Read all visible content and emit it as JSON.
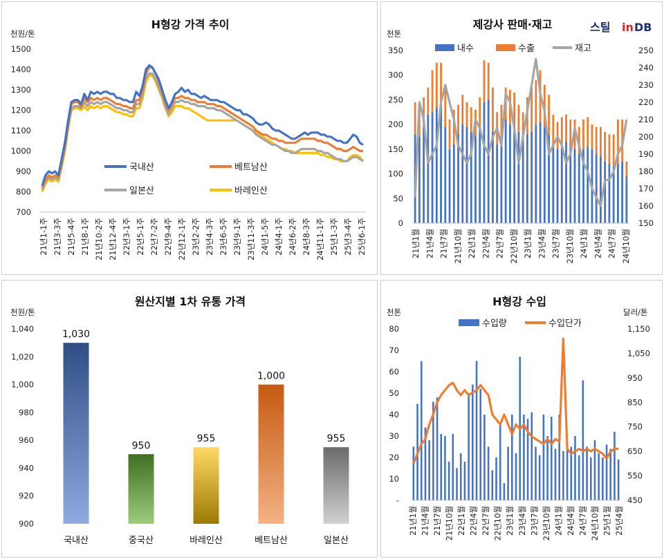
{
  "logo": {
    "part1": "스틸",
    "part2": "in",
    "part3": "DB"
  },
  "chart_data": [
    {
      "id": "h_price_trend",
      "type": "line",
      "title": "H형강 가격 추이",
      "ylabel": "천원/톤",
      "ylim": [
        700,
        1500
      ],
      "yticks": [
        700,
        800,
        900,
        1000,
        1100,
        1200,
        1300,
        1400,
        1500
      ],
      "x_tick_labels": [
        "21년1-1주",
        "21년3-3주",
        "21년5-4주",
        "21년8-1주",
        "21년10-2주",
        "21년12-4주",
        "22년3-1주",
        "22년5-1주",
        "22년7-2주",
        "22년9-4주",
        "22년12-1주",
        "23년2-2주",
        "23년4-3주",
        "23년6-5주",
        "23년9-1주",
        "23년11-3주",
        "24년1-5주",
        "24년4-1주",
        "24년6-2주",
        "24년8-3주",
        "24년11-1주",
        "25년1-3주",
        "25년3-4주",
        "25년6-1주"
      ],
      "legend_position": "center",
      "series": [
        {
          "name": "국내산",
          "color": "#4472c4",
          "values": [
            830,
            880,
            900,
            890,
            900,
            880,
            960,
            1040,
            1150,
            1240,
            1250,
            1250,
            1230,
            1280,
            1250,
            1290,
            1280,
            1290,
            1280,
            1290,
            1290,
            1280,
            1280,
            1260,
            1260,
            1250,
            1250,
            1240,
            1240,
            1290,
            1270,
            1320,
            1400,
            1420,
            1410,
            1380,
            1350,
            1300,
            1250,
            1210,
            1240,
            1280,
            1290,
            1310,
            1290,
            1300,
            1280,
            1280,
            1270,
            1260,
            1270,
            1260,
            1250,
            1250,
            1250,
            1240,
            1240,
            1230,
            1220,
            1210,
            1200,
            1200,
            1180,
            1180,
            1170,
            1160,
            1140,
            1130,
            1130,
            1140,
            1130,
            1110,
            1100,
            1100,
            1090,
            1080,
            1070,
            1060,
            1060,
            1070,
            1080,
            1090,
            1080,
            1090,
            1090,
            1090,
            1080,
            1080,
            1070,
            1070,
            1060,
            1050,
            1050,
            1040,
            1040,
            1060,
            1080,
            1070,
            1040,
            1030
          ]
        },
        {
          "name": "베트남산",
          "color": "#ed7d31",
          "values": [
            820,
            860,
            880,
            870,
            880,
            870,
            940,
            1020,
            1130,
            1230,
            1240,
            1240,
            1220,
            1260,
            1240,
            1260,
            1250,
            1260,
            1250,
            1260,
            1260,
            1250,
            1240,
            1230,
            1230,
            1220,
            1220,
            1210,
            1210,
            1250,
            1250,
            1300,
            1380,
            1410,
            1410,
            1380,
            1340,
            1290,
            1240,
            1200,
            1230,
            1260,
            1260,
            1270,
            1260,
            1260,
            1250,
            1250,
            1240,
            1240,
            1240,
            1230,
            1230,
            1230,
            1220,
            1220,
            1210,
            1200,
            1190,
            1180,
            1170,
            1160,
            1150,
            1140,
            1130,
            1120,
            1100,
            1090,
            1080,
            1080,
            1070,
            1060,
            1060,
            1050,
            1050,
            1040,
            1040,
            1040,
            1040,
            1050,
            1060,
            1060,
            1060,
            1060,
            1060,
            1050,
            1050,
            1040,
            1040,
            1030,
            1020,
            1010,
            1010,
            1000,
            1000,
            1010,
            1020,
            1010,
            1000,
            1000
          ]
        },
        {
          "name": "일본산",
          "color": "#a5a5a5",
          "values": [
            810,
            850,
            870,
            860,
            870,
            860,
            930,
            1010,
            1120,
            1210,
            1220,
            1220,
            1210,
            1240,
            1220,
            1240,
            1230,
            1240,
            1230,
            1240,
            1240,
            1230,
            1220,
            1210,
            1210,
            1200,
            1200,
            1190,
            1190,
            1230,
            1230,
            1280,
            1360,
            1380,
            1380,
            1350,
            1310,
            1270,
            1220,
            1180,
            1210,
            1240,
            1240,
            1250,
            1240,
            1240,
            1230,
            1230,
            1220,
            1220,
            1220,
            1210,
            1210,
            1210,
            1200,
            1200,
            1190,
            1180,
            1170,
            1160,
            1150,
            1140,
            1130,
            1120,
            1110,
            1100,
            1080,
            1070,
            1060,
            1050,
            1040,
            1030,
            1030,
            1020,
            1010,
            1000,
            1000,
            990,
            990,
            1000,
            1010,
            1010,
            1010,
            1010,
            1010,
            1000,
            1000,
            990,
            990,
            980,
            970,
            960,
            960,
            950,
            950,
            960,
            970,
            970,
            960,
            950
          ]
        },
        {
          "name": "바레인산",
          "color": "#ffc000",
          "values": [
            800,
            840,
            860,
            850,
            860,
            850,
            920,
            1000,
            1110,
            1200,
            1210,
            1210,
            1200,
            1220,
            1200,
            1220,
            1210,
            1220,
            1210,
            1220,
            1220,
            1210,
            1200,
            1190,
            1190,
            1180,
            1180,
            1170,
            1170,
            1210,
            1210,
            1260,
            1340,
            1370,
            1370,
            1340,
            1300,
            1260,
            1210,
            1170,
            1190,
            1220,
            1220,
            1220,
            1210,
            1210,
            1200,
            1190,
            1180,
            1170,
            1160,
            1150,
            1150,
            1150,
            1150,
            1150,
            1150,
            1150,
            1150,
            1150,
            1150,
            1140,
            1130,
            1120,
            1110,
            1100,
            1090,
            1080,
            1070,
            1060,
            1050,
            1040,
            1030,
            1020,
            1010,
            1010,
            1000,
            1000,
            990,
            990,
            990,
            990,
            990,
            990,
            990,
            990,
            980,
            980,
            970,
            970,
            960,
            960,
            950,
            950,
            950,
            970,
            980,
            980,
            970,
            950
          ]
        }
      ]
    },
    {
      "id": "mill_sales_inventory",
      "type": "bar",
      "title": "제강사 판매·재고",
      "ylabel": "천톤",
      "ylim": [
        0,
        350
      ],
      "y2lim": [
        150,
        250
      ],
      "yticks": [
        0,
        50,
        100,
        150,
        200,
        250,
        300,
        350
      ],
      "y2ticks": [
        150,
        160,
        170,
        180,
        190,
        200,
        210,
        220,
        230,
        240,
        250
      ],
      "x_tick_labels": [
        "21년1월",
        "21년4월",
        "21년7월",
        "21년10월",
        "22년1월",
        "22년4월",
        "22년7월",
        "22년10월",
        "23년1월",
        "23년4월",
        "23년7월",
        "23년10월",
        "24년1월",
        "24년4월",
        "24년7월",
        "24년10월"
      ],
      "legend_position": "top",
      "series": [
        {
          "name": "내수",
          "color": "#4472c4",
          "stack": true,
          "values": [
            180,
            175,
            195,
            220,
            225,
            235,
            245,
            195,
            150,
            160,
            180,
            200,
            195,
            185,
            175,
            195,
            245,
            250,
            185,
            160,
            175,
            210,
            200,
            200,
            185,
            170,
            180,
            185,
            200,
            205,
            195,
            180,
            160,
            150,
            160,
            165,
            155,
            150,
            140,
            150,
            155,
            150,
            140,
            135,
            125,
            120,
            115,
            120,
            125,
            95
          ]
        },
        {
          "name": "수출",
          "color": "#ed7d31",
          "stack": true,
          "values": [
            65,
            60,
            60,
            55,
            85,
            90,
            80,
            80,
            60,
            70,
            60,
            60,
            50,
            50,
            55,
            60,
            85,
            75,
            90,
            65,
            65,
            65,
            70,
            65,
            55,
            55,
            75,
            90,
            90,
            105,
            85,
            80,
            60,
            55,
            55,
            55,
            55,
            60,
            55,
            60,
            60,
            50,
            55,
            60,
            60,
            60,
            65,
            90,
            85,
            30
          ]
        },
        {
          "name": "재고",
          "color": "#a5a5a5",
          "axis": "right",
          "values": [
            165,
            220,
            210,
            185,
            190,
            195,
            220,
            230,
            220,
            210,
            195,
            190,
            185,
            190,
            210,
            205,
            195,
            190,
            200,
            205,
            195,
            225,
            220,
            205,
            185,
            200,
            215,
            230,
            245,
            225,
            215,
            190,
            195,
            200,
            195,
            185,
            190,
            205,
            195,
            185,
            180,
            170,
            165,
            160,
            175,
            175,
            180,
            190,
            195,
            210
          ]
        }
      ]
    },
    {
      "id": "distribution_price_by_origin",
      "type": "bar",
      "title": "원산지별 1차 유통 가격",
      "ylabel": "천원/톤",
      "ylim": [
        900,
        1040
      ],
      "yticks": [
        900,
        920,
        940,
        960,
        980,
        1000,
        1020,
        1040
      ],
      "ytick_labels": [
        "900",
        "920",
        "940",
        "960",
        "980",
        "1,000",
        "1,020",
        "1,040"
      ],
      "categories": [
        "국내산",
        "중국산",
        "바레인산",
        "베트남산",
        "일본산"
      ],
      "values": [
        1030,
        950,
        955,
        1000,
        955
      ],
      "value_labels": [
        "1,030",
        "950",
        "955",
        "1,000",
        "955"
      ],
      "colors": [
        [
          "#2f4e86",
          "#8fa9e0"
        ],
        [
          "#3f6e25",
          "#9ccc7a"
        ],
        [
          "#ffd966",
          "#9c7a00"
        ],
        [
          "#c55a11",
          "#f4b183"
        ],
        [
          "#6b6b6b",
          "#d0d0d0"
        ]
      ]
    },
    {
      "id": "h_imports",
      "type": "bar",
      "title": "H형강 수입",
      "ylabel": "천톤",
      "y2label": "달러/톤",
      "ylim": [
        0,
        80
      ],
      "y2lim": [
        450,
        1150
      ],
      "yticks": [
        0,
        10,
        20,
        30,
        40,
        50,
        60,
        70,
        80
      ],
      "ytick_labels": [
        "-",
        "10",
        "20",
        "30",
        "40",
        "50",
        "60",
        "70",
        "80"
      ],
      "y2ticks": [
        450,
        550,
        650,
        750,
        850,
        950,
        1050,
        1150
      ],
      "y2tick_labels": [
        "450",
        "550",
        "650",
        "750",
        "850",
        "950",
        "1,050",
        "1,150"
      ],
      "x_tick_labels": [
        "21년1월",
        "21년4월",
        "21년7월",
        "21년10월",
        "22년1월",
        "22년4월",
        "22년7월",
        "22년10월",
        "23년1월",
        "23년4월",
        "23년7월",
        "23년10월",
        "24년1월",
        "24년4월",
        "24년7월",
        "24년10월",
        "25년1월",
        "25년4월"
      ],
      "legend_position": "top",
      "series": [
        {
          "name": "수입량",
          "color": "#4472c4",
          "values": [
            25,
            45,
            65,
            34,
            28,
            46,
            48,
            31,
            30,
            18,
            31,
            15,
            22,
            18,
            50,
            54,
            65,
            52,
            40,
            25,
            14,
            20,
            35,
            8,
            25,
            40,
            22,
            67,
            40,
            38,
            41,
            25,
            21,
            40,
            30,
            39,
            24,
            40,
            23,
            24,
            25,
            30,
            21,
            56,
            25,
            20,
            28,
            22,
            20,
            26,
            24,
            32,
            19
          ]
        },
        {
          "name": "수입단가",
          "color": "#ed7d31",
          "axis": "right",
          "values": [
            600,
            640,
            680,
            700,
            760,
            800,
            850,
            880,
            900,
            920,
            930,
            900,
            880,
            900,
            880,
            890,
            900,
            920,
            900,
            880,
            800,
            780,
            760,
            800,
            760,
            720,
            760,
            740,
            760,
            730,
            710,
            700,
            690,
            680,
            700,
            680,
            700,
            690,
            1110,
            660,
            640,
            650,
            660,
            650,
            660,
            650,
            660,
            650,
            640,
            620,
            650,
            660,
            660
          ]
        }
      ]
    }
  ]
}
